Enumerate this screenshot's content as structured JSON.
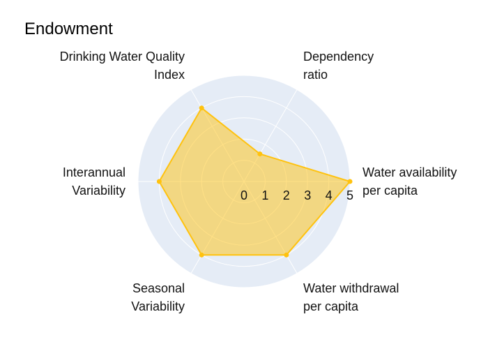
{
  "chart_data": {
    "type": "radar",
    "title": "Endowment",
    "axes": [
      {
        "label_lines": [
          "Water availability",
          "per capita"
        ]
      },
      {
        "label_lines": [
          "Dependency",
          "ratio"
        ]
      },
      {
        "label_lines": [
          "Drinking Water Quality",
          "Index"
        ]
      },
      {
        "label_lines": [
          "Interannual",
          "Variability"
        ]
      },
      {
        "label_lines": [
          "Seasonal",
          "Variability"
        ]
      },
      {
        "label_lines": [
          "Water withdrawal",
          "per capita"
        ]
      }
    ],
    "values": [
      5,
      1.5,
      4,
      4,
      4,
      4
    ],
    "radial_range": [
      0,
      5
    ],
    "radial_ticks": [
      0,
      1,
      2,
      3,
      4,
      5
    ],
    "grid": true
  },
  "colors": {
    "polar_background": "#e5ecf6",
    "grid": "#ffffff",
    "series_line": "#ffc20e",
    "series_fill": "rgba(255, 194, 14, 0.5)"
  }
}
